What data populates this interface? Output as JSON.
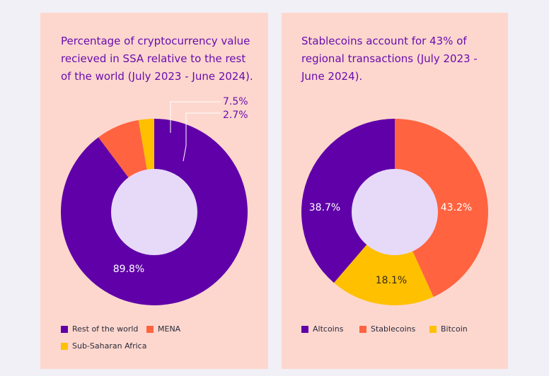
{
  "colors": {
    "purple": "#6000a8",
    "orange": "#ff6340",
    "yellow": "#ffc000",
    "hole": "#e7daf9",
    "label_purple": "#6a0dad"
  },
  "chart_data": [
    {
      "type": "pie",
      "title": "Percentage of cryptocurrency value recieved in SSA relative to the rest of the world (July 2023 - June 2024).",
      "categories": [
        "Rest of the world",
        "MENA",
        "Sub-Saharan Africa"
      ],
      "values": [
        89.8,
        7.5,
        2.7
      ],
      "labels": [
        "89.8%",
        "7.5%",
        "2.7%"
      ],
      "donut": true
    },
    {
      "type": "pie",
      "title": "Stablecoins account for 43% of regional transactions (July 2023 - June 2024).",
      "categories": [
        "Stablecoins",
        "Bitcoin",
        "Altcoins"
      ],
      "values": [
        43.2,
        18.1,
        38.7
      ],
      "labels": [
        "43.2%",
        "18.1%",
        "38.7%"
      ],
      "donut": true
    }
  ],
  "legend_left": [
    "Rest of the world",
    "MENA",
    "Sub-Saharan Africa"
  ],
  "legend_right": [
    "Altcoins",
    "Stablecoins",
    "Bitcoin"
  ]
}
